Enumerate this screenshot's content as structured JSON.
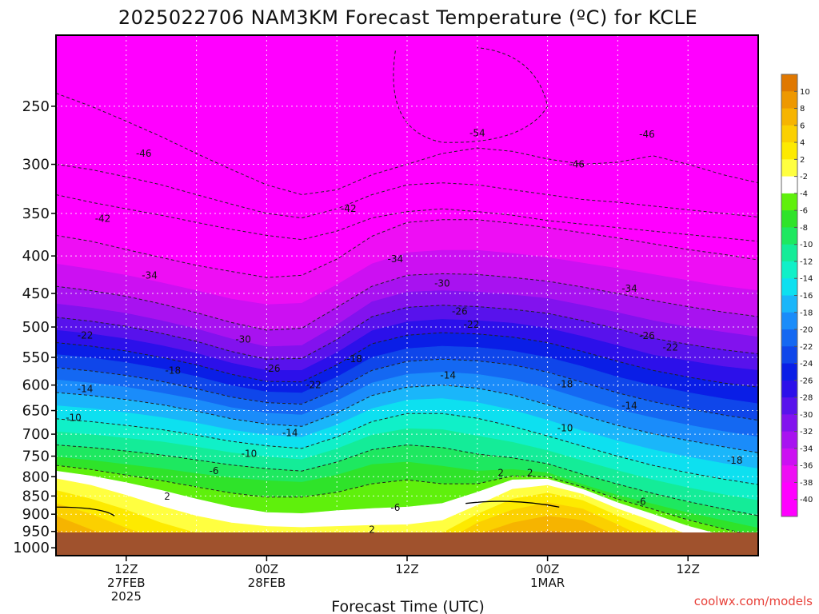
{
  "chart_data": {
    "type": "heatmap",
    "title": "2025022706 NAM3KM Forecast Temperature (ºC) for KCLE",
    "xlabel": "Forecast Time (UTC)",
    "ylabel": "",
    "credit": "coolwx.com/models",
    "y_ticks": [
      "250",
      "300",
      "350",
      "400",
      "450",
      "500",
      "550",
      "600",
      "650",
      "700",
      "750",
      "800",
      "850",
      "900",
      "950",
      "1000"
    ],
    "y_levels_hpa": [
      250,
      300,
      350,
      400,
      450,
      500,
      550,
      600,
      650,
      700,
      750,
      800,
      850,
      900,
      950,
      1000
    ],
    "y_range_hpa": [
      200,
      1025
    ],
    "x_ticks": [
      {
        "line1": "12Z",
        "line2": "27FEB",
        "line3": "2025",
        "hour": 6
      },
      {
        "line1": "00Z",
        "line2": "28FEB",
        "line3": "",
        "hour": 18
      },
      {
        "line1": "12Z",
        "line2": "",
        "line3": "",
        "hour": 30
      },
      {
        "line1": "00Z",
        "line2": "1MAR",
        "line3": "",
        "hour": 42
      },
      {
        "line1": "12Z",
        "line2": "",
        "line3": "",
        "hour": 54
      }
    ],
    "x_range_hours": [
      0,
      60
    ],
    "grid": true,
    "colorbar": {
      "labels": [
        "10",
        "8",
        "6",
        "4",
        "2",
        "-2",
        "-4",
        "-6",
        "-8",
        "-10",
        "-12",
        "-14",
        "-16",
        "-18",
        "-20",
        "-22",
        "-24",
        "-26",
        "-28",
        "-30",
        "-32",
        "-34",
        "-36",
        "-38",
        "-40"
      ],
      "colors": [
        "#e07800",
        "#ee9800",
        "#f6b400",
        "#fbd000",
        "#fdea00",
        "#ffff40",
        "#ffffff",
        "#5ff00c",
        "#2fe32a",
        "#1ee860",
        "#14ec98",
        "#10f0c8",
        "#0de0f0",
        "#1ab6fa",
        "#1a8cfa",
        "#1468f2",
        "#0f46ea",
        "#0a1ee6",
        "#2c10ea",
        "#5812ec",
        "#8212ee",
        "#a812f0",
        "#cc10f2",
        "#ee0ef4",
        "#ff00ff",
        "#ff00ff"
      ]
    },
    "contour_labels": [
      {
        "text": "-54",
        "hour": 36,
        "hpa": 272
      },
      {
        "text": "-46",
        "hour": 7.5,
        "hpa": 290
      },
      {
        "text": "-46",
        "hour": 44.5,
        "hpa": 300
      },
      {
        "text": "-46",
        "hour": 50.5,
        "hpa": 273
      },
      {
        "text": "-42",
        "hour": 4,
        "hpa": 356
      },
      {
        "text": "-42",
        "hour": 25,
        "hpa": 345
      },
      {
        "text": "-34",
        "hour": 8,
        "hpa": 425
      },
      {
        "text": "-34",
        "hour": 29,
        "hpa": 404
      },
      {
        "text": "-34",
        "hour": 49,
        "hpa": 443
      },
      {
        "text": "-30",
        "hour": 16,
        "hpa": 520
      },
      {
        "text": "-30",
        "hour": 33,
        "hpa": 436
      },
      {
        "text": "-26",
        "hour": 18.5,
        "hpa": 570
      },
      {
        "text": "-26",
        "hour": 34.5,
        "hpa": 476
      },
      {
        "text": "-26",
        "hour": 50.5,
        "hpa": 514
      },
      {
        "text": "-22",
        "hour": 2.5,
        "hpa": 513
      },
      {
        "text": "-22",
        "hour": 35.5,
        "hpa": 496
      },
      {
        "text": "-22",
        "hour": 22,
        "hpa": 600
      },
      {
        "text": "-22",
        "hour": 52.5,
        "hpa": 533
      },
      {
        "text": "-18",
        "hour": 10,
        "hpa": 573
      },
      {
        "text": "-18",
        "hour": 25.5,
        "hpa": 553
      },
      {
        "text": "-18",
        "hour": 43.5,
        "hpa": 598
      },
      {
        "text": "-18",
        "hour": 58,
        "hpa": 760
      },
      {
        "text": "-14",
        "hour": 2.5,
        "hpa": 607
      },
      {
        "text": "-14",
        "hour": 33.5,
        "hpa": 582
      },
      {
        "text": "-14",
        "hour": 49,
        "hpa": 640
      },
      {
        "text": "-14",
        "hour": 20,
        "hpa": 697
      },
      {
        "text": "-10",
        "hour": 1.5,
        "hpa": 665
      },
      {
        "text": "-10",
        "hour": 16.5,
        "hpa": 744
      },
      {
        "text": "-10",
        "hour": 43.5,
        "hpa": 687
      },
      {
        "text": "-6",
        "hour": 13.5,
        "hpa": 786
      },
      {
        "text": "-6",
        "hour": 29,
        "hpa": 882
      },
      {
        "text": "-6",
        "hour": 50,
        "hpa": 865
      },
      {
        "text": "2",
        "hour": 9.5,
        "hpa": 851
      },
      {
        "text": "2",
        "hour": 27,
        "hpa": 945
      },
      {
        "text": "2",
        "hour": 38,
        "hpa": 790
      },
      {
        "text": "2",
        "hour": 40.5,
        "hpa": 790
      }
    ]
  }
}
